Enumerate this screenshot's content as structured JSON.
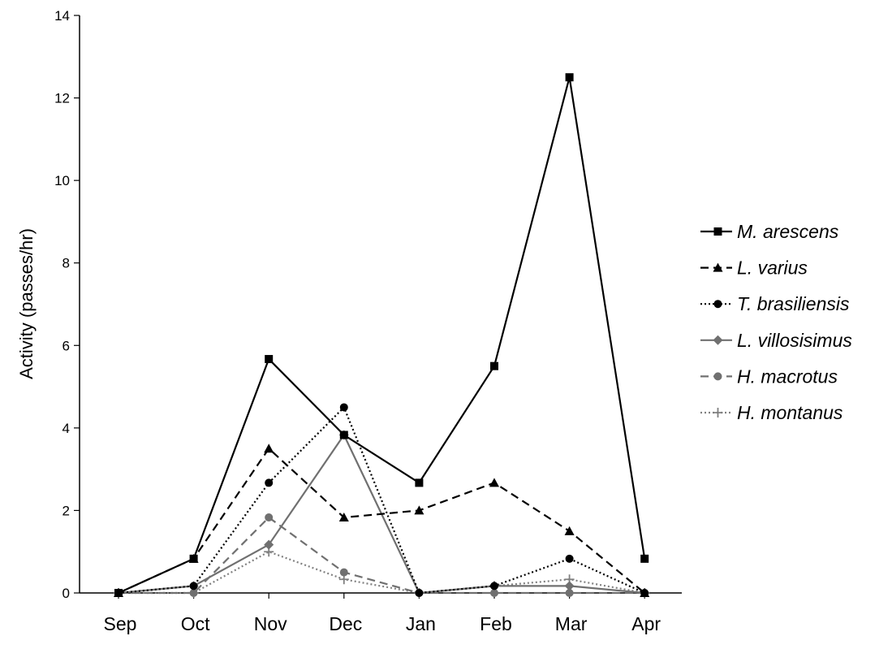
{
  "chart_data": {
    "type": "line",
    "title": "",
    "xlabel": "",
    "ylabel": "Activity (passes/hr)",
    "categories": [
      "Sep",
      "Oct",
      "Nov",
      "Dec",
      "Jan",
      "Feb",
      "Mar",
      "Apr"
    ],
    "ylim": [
      0,
      14
    ],
    "yticks": [
      0,
      2,
      4,
      6,
      8,
      10,
      12,
      14
    ],
    "grid": false,
    "legend_position": "right",
    "series": [
      {
        "name": "M. arescens",
        "values": [
          0,
          0.83,
          5.67,
          3.83,
          2.67,
          5.5,
          12.5,
          0.83
        ],
        "color": "#000000",
        "dash": "solid",
        "marker": "square"
      },
      {
        "name": "L. varius",
        "values": [
          0,
          0.83,
          3.5,
          1.83,
          2.0,
          2.67,
          1.5,
          0
        ],
        "color": "#000000",
        "dash": "dashed",
        "marker": "triangle"
      },
      {
        "name": "T. brasiliensis",
        "values": [
          0,
          0.17,
          2.67,
          4.5,
          0,
          0.17,
          0.83,
          0
        ],
        "color": "#000000",
        "dash": "dotted",
        "marker": "circle"
      },
      {
        "name": "L. villosisimus",
        "values": [
          0,
          0.17,
          1.17,
          3.83,
          0,
          0.17,
          0.17,
          0
        ],
        "color": "#707070",
        "dash": "solid",
        "marker": "diamond"
      },
      {
        "name": "H. macrotus",
        "values": [
          0,
          0,
          1.83,
          0.5,
          0,
          0,
          0,
          0
        ],
        "color": "#707070",
        "dash": "dashed",
        "marker": "circle"
      },
      {
        "name": "H. montanus",
        "values": [
          0,
          0,
          1.0,
          0.33,
          0,
          0.17,
          0.33,
          0
        ],
        "color": "#808080",
        "dash": "dotted",
        "marker": "plus"
      }
    ]
  }
}
